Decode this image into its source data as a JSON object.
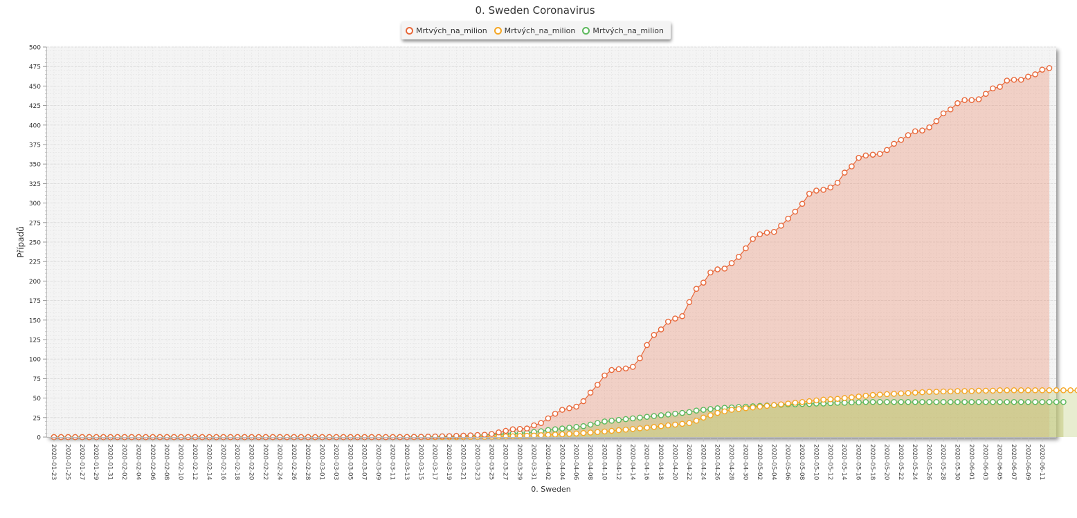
{
  "chart_data": {
    "type": "area",
    "title": "0. Sweden Coronavirus",
    "xlabel": "0. Sweden",
    "ylabel": "Případů",
    "ylim": [
      0,
      500
    ],
    "yticks": [
      0,
      25,
      50,
      75,
      100,
      125,
      150,
      175,
      200,
      225,
      250,
      275,
      300,
      325,
      350,
      375,
      400,
      425,
      450,
      475,
      500
    ],
    "x_start": "2020-01-23",
    "x_end": "2020-06-11",
    "x_label_every": 2,
    "grid": true,
    "legend_position": "top-center",
    "series": [
      {
        "name": "Mrtvých_na_milion",
        "color": "#e8683a",
        "fill": "rgba(236, 134, 103, 0.32)",
        "values": [
          0,
          0,
          0,
          0,
          0,
          0,
          0,
          0,
          0,
          0,
          0,
          0,
          0,
          0,
          0,
          0,
          0,
          0,
          0,
          0,
          0,
          0,
          0,
          0,
          0,
          0,
          0,
          0,
          0,
          0,
          0,
          0,
          0,
          0,
          0,
          0,
          0,
          0,
          0,
          0,
          0,
          0,
          0,
          0,
          0,
          0,
          0,
          0,
          0,
          0,
          0.1,
          0.2,
          0.3,
          0.5,
          0.7,
          1,
          1.2,
          1.5,
          1.8,
          2.2,
          2.6,
          3,
          4,
          6,
          8,
          10,
          10.5,
          11,
          15,
          18,
          24,
          30,
          35,
          37,
          39,
          46,
          57,
          67,
          79,
          86,
          87,
          88,
          90,
          101,
          118,
          131,
          138,
          148,
          152,
          155,
          173,
          190,
          198,
          211,
          215,
          216,
          223,
          231,
          242,
          254,
          260,
          262,
          263,
          271,
          280,
          289,
          299,
          312,
          316,
          317,
          320,
          326,
          339,
          347,
          358,
          361,
          362,
          363,
          368,
          376,
          381,
          387,
          392,
          393,
          397,
          405,
          415,
          420,
          428,
          432,
          432,
          433,
          440,
          447,
          449,
          457,
          458,
          458,
          462,
          465,
          471,
          473
        ]
      },
      {
        "name": "Mrtvých_na_milion",
        "color": "#f5a623",
        "fill": "rgba(205, 215, 150, 0.45)",
        "values": [
          0,
          0,
          0,
          0,
          0,
          0,
          0,
          0,
          0,
          0,
          0,
          0,
          0,
          0,
          0,
          0,
          0,
          0,
          0,
          0,
          0,
          0,
          0,
          0,
          0,
          0,
          0,
          0,
          0,
          0,
          0,
          0,
          0,
          0,
          0,
          0,
          0,
          0,
          0,
          0,
          0,
          0,
          0,
          0,
          0,
          0,
          0,
          0,
          0,
          0,
          0,
          0,
          0,
          0,
          0,
          0,
          0,
          0,
          0.1,
          0.2,
          0.3,
          0.4,
          0.5,
          0.7,
          0.9,
          1.1,
          1.4,
          1.7,
          2,
          2.4,
          2.8,
          3.2,
          3.6,
          4.1,
          4.6,
          5.2,
          5.8,
          6.5,
          7.2,
          8,
          8.8,
          9.6,
          10.4,
          11.2,
          12,
          13,
          14,
          15,
          16,
          17,
          18,
          21,
          25,
          28,
          31,
          33,
          35,
          36,
          37,
          38,
          39,
          40,
          41,
          42,
          43,
          44,
          45,
          46,
          47,
          48,
          48.5,
          49,
          50,
          51,
          52,
          53,
          54,
          54.5,
          55,
          55.5,
          56,
          56.5,
          57,
          57.5,
          58,
          58,
          58.5,
          58.5,
          59,
          59,
          59,
          59.5,
          59.5,
          59.5,
          60,
          60,
          60,
          60,
          60,
          60,
          60,
          60,
          60,
          60,
          60,
          60,
          60
        ]
      },
      {
        "name": "Mrtvých_na_milion",
        "color": "#5cb85c",
        "fill": "rgba(190, 195, 110, 0.45)",
        "values": [
          0,
          0,
          0,
          0,
          0,
          0,
          0,
          0,
          0,
          0,
          0,
          0,
          0,
          0,
          0,
          0,
          0,
          0,
          0,
          0,
          0,
          0,
          0,
          0,
          0,
          0,
          0,
          0,
          0,
          0,
          0,
          0,
          0,
          0,
          0,
          0,
          0,
          0,
          0,
          0,
          0,
          0,
          0,
          0,
          0,
          0,
          0,
          0,
          0,
          0,
          0.1,
          0.2,
          0.3,
          0.4,
          0.6,
          0.8,
          1,
          1.3,
          1.6,
          2,
          2.4,
          2.8,
          3.2,
          3.6,
          4,
          4.5,
          5,
          5.5,
          6.5,
          7.5,
          9,
          10,
          11,
          12,
          13,
          14,
          16,
          18,
          20,
          21,
          22,
          23,
          24,
          25,
          26,
          27,
          28,
          29,
          30,
          31,
          32,
          34,
          35,
          36,
          37,
          37.5,
          38,
          38.5,
          39,
          39.5,
          40,
          40.5,
          41,
          41.5,
          42,
          42,
          42.5,
          42.5,
          43,
          43,
          43.5,
          44,
          44,
          44.5,
          44.5,
          45,
          45,
          45,
          45,
          45,
          45,
          45,
          45,
          45,
          45,
          45,
          45,
          45,
          45,
          45,
          45,
          45,
          45,
          45,
          45,
          45,
          45,
          45,
          45,
          45,
          45,
          45,
          45,
          45
        ]
      }
    ]
  }
}
